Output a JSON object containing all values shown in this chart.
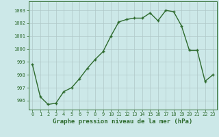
{
  "x": [
    0,
    1,
    2,
    3,
    4,
    5,
    6,
    7,
    8,
    9,
    10,
    11,
    12,
    13,
    14,
    15,
    16,
    17,
    18,
    19,
    20,
    21,
    22,
    23
  ],
  "y": [
    998.8,
    996.3,
    995.7,
    995.8,
    996.7,
    997.0,
    997.7,
    998.5,
    999.2,
    999.8,
    1001.0,
    1002.1,
    1002.3,
    1002.4,
    1002.4,
    1002.8,
    1002.2,
    1003.0,
    1002.9,
    1001.8,
    999.9,
    999.9,
    997.5,
    998.0
  ],
  "line_color": "#2d6a2d",
  "marker": "+",
  "markersize": 3.5,
  "linewidth": 1.0,
  "bg_color": "#cce8e8",
  "grid_color": "#b0c8c8",
  "xlabel": "Graphe pression niveau de la mer (hPa)",
  "xlabel_fontsize": 6.5,
  "tick_fontsize": 5.0,
  "yticks": [
    996,
    997,
    998,
    999,
    1000,
    1001,
    1002,
    1003
  ],
  "xticks": [
    0,
    1,
    2,
    3,
    4,
    5,
    6,
    7,
    8,
    9,
    10,
    11,
    12,
    13,
    14,
    15,
    16,
    17,
    18,
    19,
    20,
    21,
    22,
    23
  ],
  "ylim": [
    995.3,
    1003.7
  ],
  "xlim": [
    -0.5,
    23.5
  ]
}
